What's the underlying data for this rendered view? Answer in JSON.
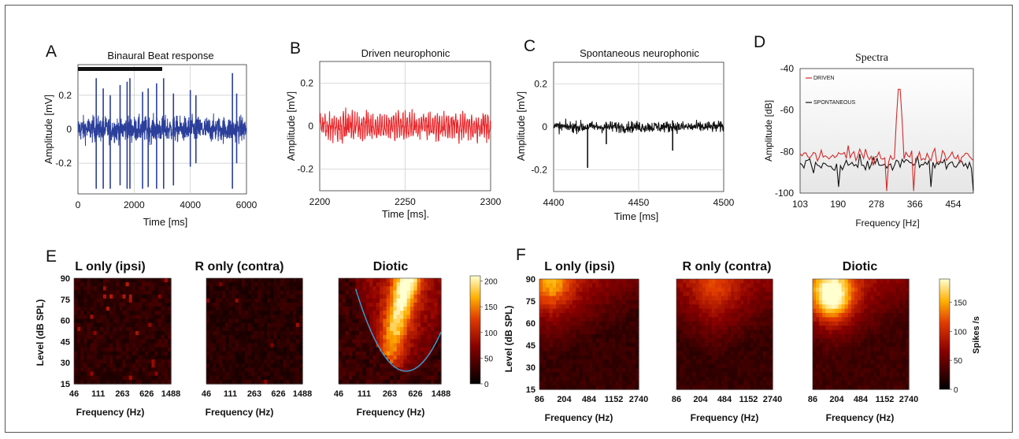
{
  "chart_data": [
    {
      "panel": "A",
      "type": "line",
      "title": "Binaural Beat response",
      "xlabel": "Time [ms]",
      "ylabel": "Amplitude [mV]",
      "xlim": [
        0,
        6000
      ],
      "ylim": [
        -0.38,
        0.38
      ],
      "xticks": [
        "0",
        "2000",
        "4000",
        "6000"
      ],
      "yticks": [
        "0.2",
        "0",
        "-0.2"
      ],
      "grid": true,
      "stimulus_bar": [
        0,
        3000
      ],
      "series": [
        {
          "color": "#2b3f9a",
          "noise_amplitude": 0.08,
          "spikes": [
            [
              650,
              0.3,
              -0.35
            ],
            [
              900,
              0.24,
              -0.35
            ],
            [
              1150,
              0.2,
              -0.35
            ],
            [
              1500,
              0.26,
              -0.33
            ],
            [
              1750,
              0.28,
              -0.35
            ],
            [
              1850,
              0.3,
              -0.35
            ],
            [
              2300,
              0.22,
              -0.35
            ],
            [
              2500,
              0.24,
              -0.34
            ],
            [
              2800,
              0.27,
              -0.35
            ],
            [
              3050,
              0.3,
              -0.35
            ],
            [
              3400,
              0.21,
              -0.33
            ],
            [
              4000,
              0.23,
              -0.22
            ],
            [
              4200,
              0.2,
              -0.2
            ],
            [
              5500,
              0.33,
              -0.35
            ],
            [
              5650,
              0.21,
              -0.2
            ]
          ]
        }
      ]
    },
    {
      "panel": "B",
      "type": "line",
      "title": "Driven neurophonic",
      "xlabel": "Time [ms].",
      "ylabel": "Amplitude [mV]",
      "xlim": [
        2200,
        2300
      ],
      "ylim": [
        -0.3,
        0.3
      ],
      "xticks": [
        "2200",
        "2250",
        "2300"
      ],
      "yticks": [
        "0.2",
        "0",
        "-0.2"
      ],
      "grid": true,
      "series": [
        {
          "color": "#e8262a",
          "noise_amplitude": 0.07
        }
      ]
    },
    {
      "panel": "C",
      "type": "line",
      "title": "Spontaneous neurophonic",
      "xlabel": "Time [ms]",
      "ylabel": "Amplitude [mV]",
      "xlim": [
        4400,
        4500
      ],
      "ylim": [
        -0.3,
        0.3
      ],
      "xticks": [
        "4400",
        "4450",
        "4500"
      ],
      "yticks": [
        "0.2",
        "0",
        "-0.2"
      ],
      "grid": true,
      "series": [
        {
          "color": "#111111",
          "noise_amplitude": 0.035,
          "spikes": [
            [
              4420,
              0.01,
              -0.19
            ],
            [
              4431,
              0.02,
              -0.08
            ],
            [
              4470,
              0.03,
              -0.11
            ]
          ]
        }
      ]
    },
    {
      "panel": "D",
      "type": "line",
      "title": "Spectra",
      "xlabel": "Frequency [Hz]",
      "ylabel": "Amplitude [dB]",
      "xlim": [
        103,
        500
      ],
      "ylim": [
        -100,
        -40
      ],
      "xticks": [
        "103",
        "190",
        "278",
        "366",
        "454"
      ],
      "xtick_values": [
        103,
        190,
        278,
        366,
        454
      ],
      "yticks": [
        "-40",
        "-60",
        "-80",
        "-100"
      ],
      "legend": "upper-left",
      "series": [
        {
          "name": "DRIVEN",
          "color": "#d42a2a",
          "base_db": -82,
          "peak": [
            330,
            -50
          ]
        },
        {
          "name": "SPONTANEOUS",
          "color": "#111111",
          "base_db": -86
        }
      ]
    },
    {
      "panel": "E",
      "type": "heatmap",
      "colormap": "hot",
      "ylabel": "Level (dB SPL)",
      "xlabel": "Frequency (Hz)",
      "xticks": [
        "46",
        "111",
        "263",
        "626",
        "1488"
      ],
      "yticks": [
        "90",
        "75",
        "60",
        "45",
        "30",
        "15"
      ],
      "colorbar": {
        "ticks": [
          "200",
          "150",
          "100",
          "50",
          "0"
        ],
        "range": [
          0,
          210
        ]
      },
      "maps": [
        {
          "title": "L only (ipsi)",
          "mean_rate": 25
        },
        {
          "title": "R only (contra)",
          "mean_rate": 22
        },
        {
          "title": "Diotic",
          "mean_rate": 40,
          "hot_region": "V-shaped tuning curve, best frequency ≈ 400 Hz, threshold ≈ 25 dB SPL",
          "tuning_curve": true
        }
      ]
    },
    {
      "panel": "F",
      "type": "heatmap",
      "colormap": "hot",
      "ylabel": "Level (dB SPL)",
      "xlabel": "Frequency (Hz)",
      "xticks": [
        "86",
        "204",
        "484",
        "1152",
        "2740"
      ],
      "yticks": [
        "90",
        "75",
        "60",
        "45",
        "30",
        "15"
      ],
      "colorbar": {
        "label": "Spikes /s",
        "ticks": [
          "150",
          "100",
          "50",
          "0"
        ],
        "range": [
          0,
          190
        ]
      },
      "maps": [
        {
          "title": "L only (ipsi)",
          "mean_rate": 35,
          "hot_region": "upper-left"
        },
        {
          "title": "R only (contra)",
          "mean_rate": 30,
          "hot_region": "upper-middle"
        },
        {
          "title": "Diotic",
          "mean_rate": 55,
          "hot_region": "upper-left, strong"
        }
      ]
    }
  ],
  "panel_letters": [
    "A",
    "B",
    "C",
    "D",
    "E",
    "F"
  ]
}
